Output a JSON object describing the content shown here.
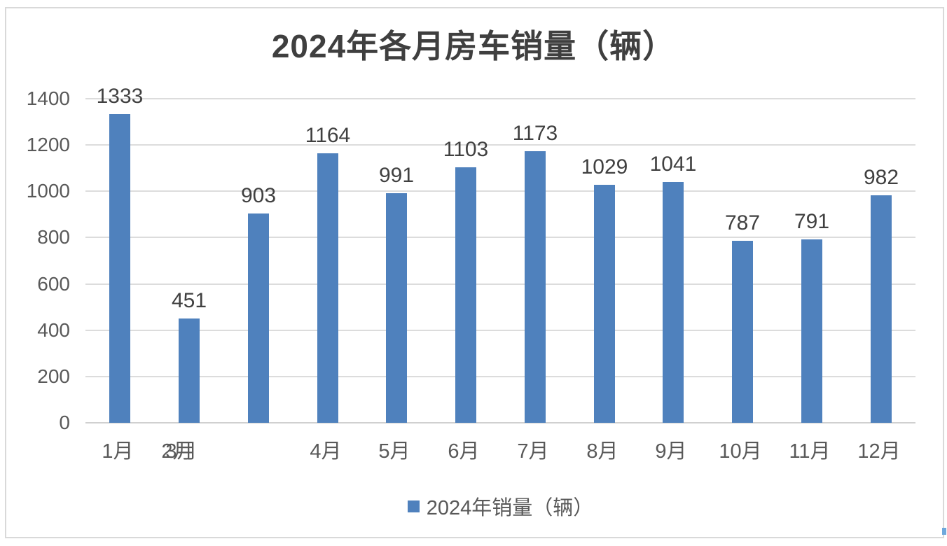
{
  "chart_data": {
    "type": "bar",
    "title": "2024年各月房车销量（辆）",
    "series_name": "2024年销量（辆）",
    "categories": [
      "1月",
      "2月",
      "3月",
      "4月",
      "5月",
      "6月",
      "7月",
      "8月",
      "9月",
      "10月",
      "11月",
      "12月"
    ],
    "values": [
      1333,
      451,
      903,
      1164,
      991,
      1103,
      1173,
      1029,
      1041,
      787,
      791,
      982
    ],
    "data_labels_shown": true,
    "xlabel": "",
    "ylabel": "",
    "ylim": [
      0,
      1400
    ],
    "yticks": [
      0,
      200,
      400,
      600,
      800,
      1000,
      1200,
      1400
    ],
    "grid": true,
    "legend_position": "bottom",
    "bar_color": "#4f81bd",
    "annotation": "x-axis labels 2月 and 3月 are drawn overlapping each other under the second bar; the third bar has no label directly beneath it"
  },
  "colors": {
    "bar": "#4f81bd",
    "title_text": "#3f3f3f",
    "axis_text": "#595959",
    "data_label_text": "#404040",
    "gridline": "#dcdcdc",
    "frame_border": "#d9d9d9"
  }
}
